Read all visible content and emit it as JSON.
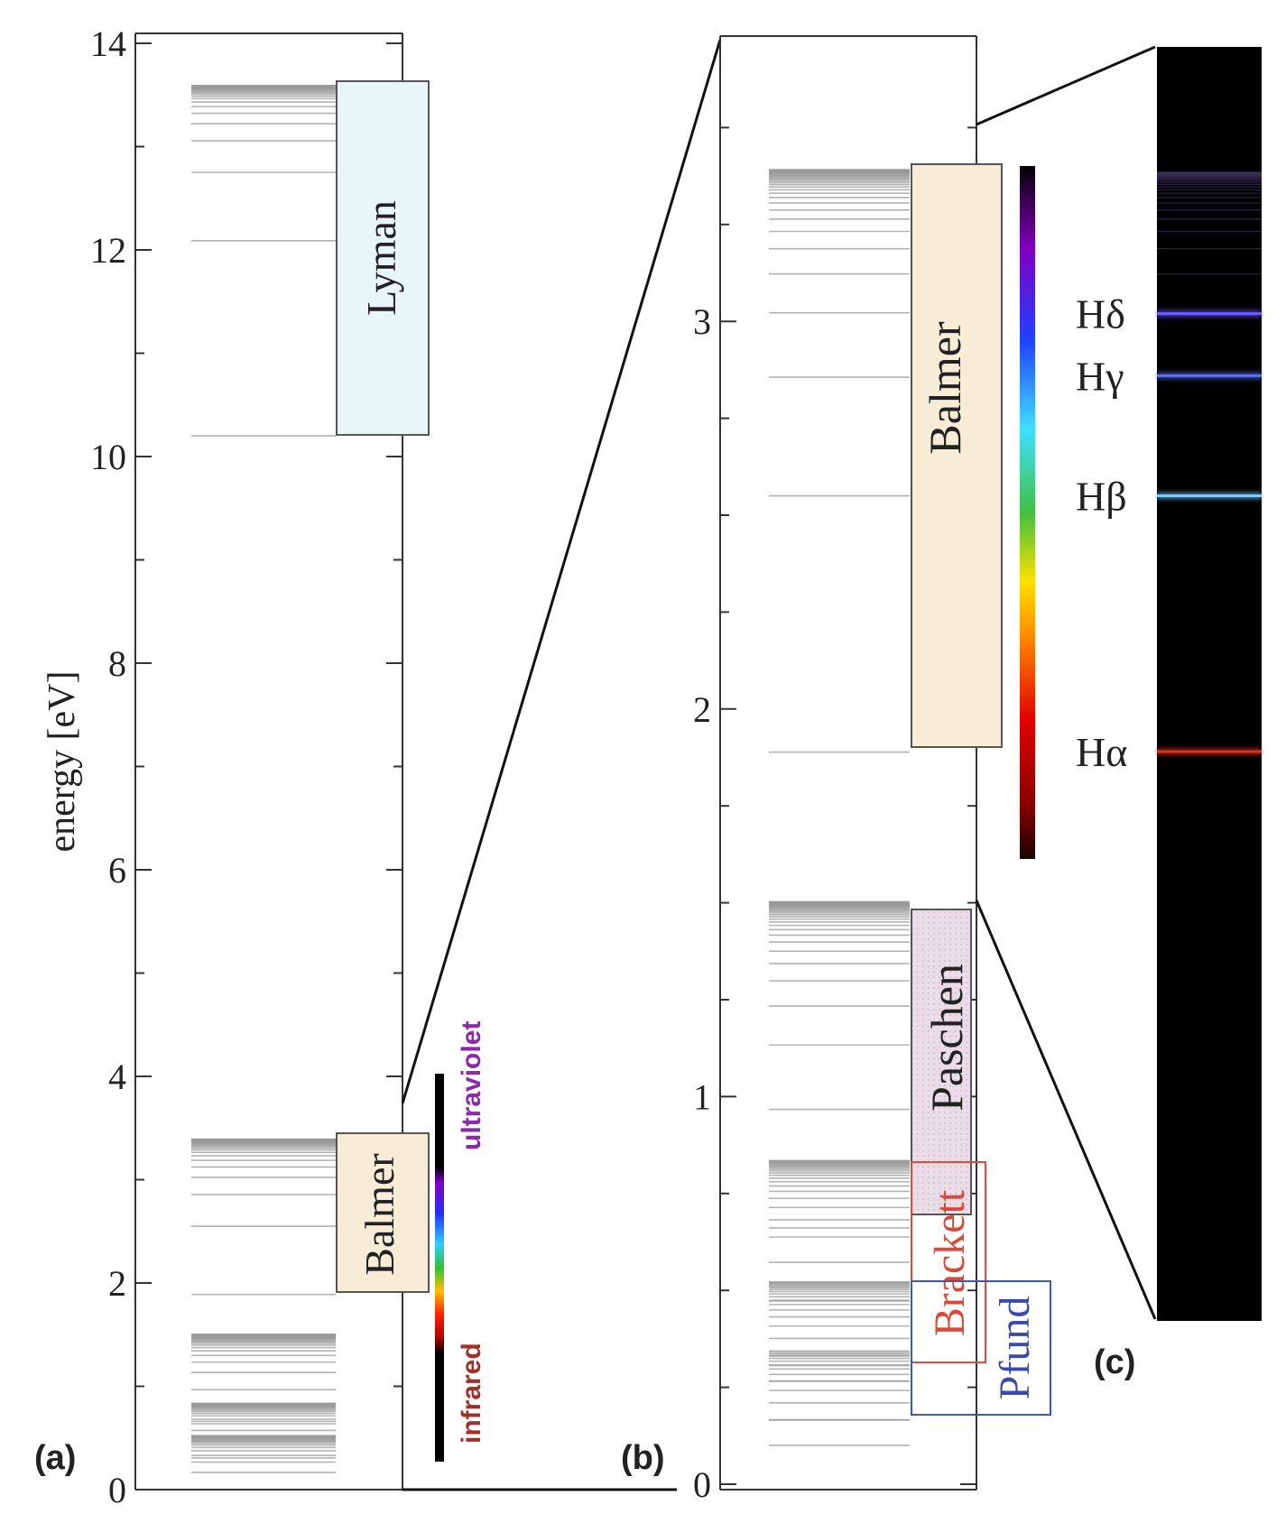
{
  "panel_a": {
    "label": "(a)",
    "ylabel": "energy [eV]",
    "ylim": [
      0,
      14
    ],
    "ticks": [
      "0",
      "2",
      "4",
      "6",
      "8",
      "10",
      "12",
      "14"
    ],
    "tick_values": [
      0,
      2,
      4,
      6,
      8,
      10,
      12,
      14
    ],
    "boxes": {
      "lyman": {
        "label": "Lyman",
        "range_ev": [
          10.2,
          13.6
        ],
        "color": "#e8f6f8"
      },
      "balmer": {
        "label": "Balmer",
        "range_ev": [
          1.89,
          3.4
        ],
        "color": "#f7ecd6"
      }
    },
    "spectrum_labels": {
      "ultraviolet": "ultraviolet",
      "infrared": "infrared"
    },
    "ultraviolet_color": "#8a2aa8",
    "infrared_color": "#a0302a"
  },
  "panel_b": {
    "label": "(b)",
    "ylim": [
      0,
      3.75
    ],
    "ticks": [
      "0",
      "1",
      "2",
      "3"
    ],
    "tick_values": [
      0,
      1,
      2,
      3
    ],
    "boxes": {
      "balmer": {
        "label": "Balmer",
        "range_ev": [
          1.89,
          3.4
        ],
        "color": "#f7ecd6"
      },
      "paschen": {
        "label": "Paschen",
        "range_ev": [
          0.66,
          1.51
        ],
        "color": "#eadde8"
      },
      "brackett": {
        "label": "Brackett",
        "range_ev": [
          0.31,
          0.85
        ],
        "color": "#e0402a"
      },
      "pfund": {
        "label": "Pfund",
        "range_ev": [
          0.17,
          0.54
        ],
        "color": "#3050b0"
      }
    }
  },
  "panel_c": {
    "label": "(c)",
    "lines": [
      {
        "label": "Hδ",
        "ev": 3.02,
        "color": "#6a5cff"
      },
      {
        "label": "Hγ",
        "ev": 2.86,
        "color": "#5a6cff"
      },
      {
        "label": "Hβ",
        "ev": 2.55,
        "color": "#7ec8ff"
      },
      {
        "label": "Hα",
        "ev": 1.89,
        "color": "#e03020"
      }
    ]
  }
}
